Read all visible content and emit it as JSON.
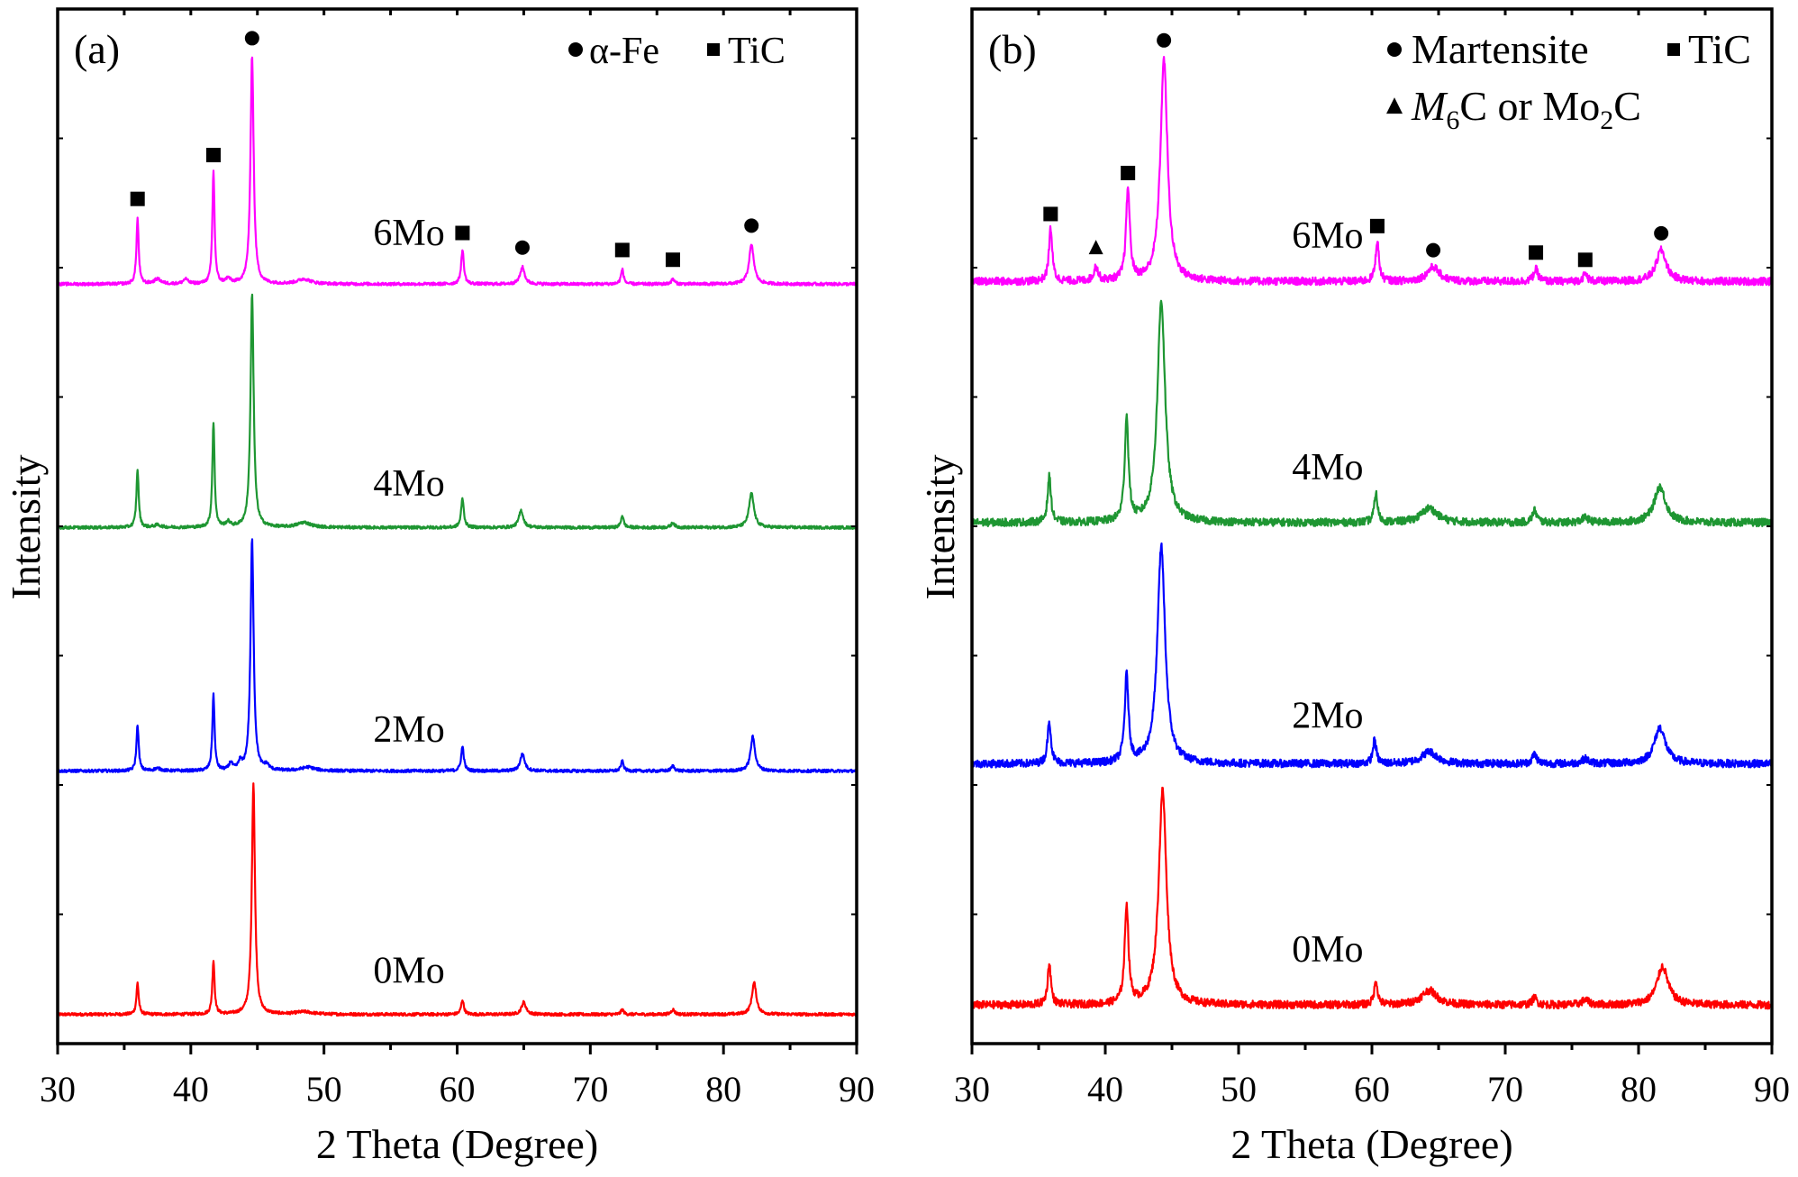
{
  "chart_data": [
    {
      "type": "line",
      "panel_label": "(a)",
      "xlabel": "2 Theta (Degree)",
      "ylabel": "Intensity",
      "xlim": [
        30,
        90
      ],
      "ylim": [
        -12,
        413
      ],
      "xticks": [
        "30",
        "40",
        "50",
        "60",
        "70",
        "80",
        "90"
      ],
      "noise_level": 0.6,
      "legend": {
        "position": "top-right",
        "items": [
          {
            "symbol": "circle",
            "label": "α-Fe"
          },
          {
            "symbol": "square",
            "label": "TiC"
          }
        ]
      },
      "series": [
        {
          "name": "0Mo",
          "color": "#ff0000",
          "offset": 0,
          "label_at": [
            53.7,
            13
          ],
          "peaks": [
            [
              36.0,
              13,
              0.1
            ],
            [
              41.7,
              22,
              0.1
            ],
            [
              44.7,
              95,
              0.14
            ],
            [
              48.5,
              1,
              0.8
            ],
            [
              60.4,
              6,
              0.12
            ],
            [
              65.0,
              5,
              0.2
            ],
            [
              72.4,
              2,
              0.12
            ],
            [
              76.2,
              2,
              0.15
            ],
            [
              82.3,
              13,
              0.2
            ]
          ]
        },
        {
          "name": "2Mo",
          "color": "#0000ff",
          "offset": 100,
          "label_at": [
            53.7,
            112
          ],
          "peaks": [
            [
              36.0,
              19,
              0.1
            ],
            [
              37.5,
              1,
              0.3
            ],
            [
              41.7,
              31,
              0.1
            ],
            [
              43.0,
              3,
              0.15
            ],
            [
              43.7,
              3,
              0.15
            ],
            [
              44.6,
              95,
              0.14
            ],
            [
              45.7,
              2,
              0.2
            ],
            [
              48.8,
              1.5,
              0.6
            ],
            [
              60.4,
              10,
              0.12
            ],
            [
              64.9,
              7,
              0.2
            ],
            [
              72.4,
              4,
              0.12
            ],
            [
              76.2,
              2,
              0.15
            ],
            [
              82.2,
              14,
              0.2
            ]
          ]
        },
        {
          "name": "4Mo",
          "color": "#1e9632",
          "offset": 200,
          "label_at": [
            53.7,
            213
          ],
          "peaks": [
            [
              36.0,
              24,
              0.1
            ],
            [
              37.5,
              1,
              0.3
            ],
            [
              41.7,
              43,
              0.1
            ],
            [
              42.8,
              2,
              0.2
            ],
            [
              44.6,
              96,
              0.14
            ],
            [
              48.5,
              2,
              0.6
            ],
            [
              60.4,
              12,
              0.12
            ],
            [
              64.8,
              7,
              0.2
            ],
            [
              72.4,
              5,
              0.12
            ],
            [
              76.2,
              2,
              0.15
            ],
            [
              82.1,
              14,
              0.22
            ]
          ]
        },
        {
          "name": "6Mo",
          "color": "#ff00ff",
          "offset": 300,
          "label_at": [
            53.7,
            316
          ],
          "peaks": [
            [
              36.0,
              27,
              0.1
            ],
            [
              37.5,
              2,
              0.3
            ],
            [
              39.6,
              2,
              0.2
            ],
            [
              41.7,
              46,
              0.1
            ],
            [
              42.8,
              2,
              0.2
            ],
            [
              44.6,
              94,
              0.14
            ],
            [
              48.5,
              2,
              0.6
            ],
            [
              60.4,
              14,
              0.12
            ],
            [
              64.9,
              7,
              0.2
            ],
            [
              72.4,
              6,
              0.12
            ],
            [
              76.2,
              2,
              0.15
            ],
            [
              82.1,
              16,
              0.22
            ]
          ]
        }
      ],
      "markers": [
        {
          "symbol": "square",
          "x": 36.0,
          "y": 335
        },
        {
          "symbol": "square",
          "x": 41.7,
          "y": 353
        },
        {
          "symbol": "circle",
          "x": 44.6,
          "y": 401
        },
        {
          "symbol": "square",
          "x": 60.4,
          "y": 321
        },
        {
          "symbol": "circle",
          "x": 64.9,
          "y": 315
        },
        {
          "symbol": "square",
          "x": 72.4,
          "y": 314
        },
        {
          "symbol": "square",
          "x": 76.2,
          "y": 310
        },
        {
          "symbol": "circle",
          "x": 82.1,
          "y": 324
        }
      ]
    },
    {
      "type": "line",
      "panel_label": "(b)",
      "xlabel": "2 Theta (Degree)",
      "ylabel": "Intensity",
      "xlim": [
        30,
        90
      ],
      "ylim": [
        -16,
        413
      ],
      "xticks": [
        "30",
        "40",
        "50",
        "60",
        "70",
        "80",
        "90"
      ],
      "noise_level": 1.6,
      "legend": {
        "position": "top-right",
        "items": [
          {
            "symbol": "circle",
            "label": "Martensite"
          },
          {
            "symbol": "square",
            "label": "TiC"
          },
          {
            "symbol": "triangle",
            "label": "M6C or Mo2C",
            "parts": {
              "italic": "M",
              "sub1": "6",
              "mid": "C or Mo",
              "sub2": "2",
              "end": "C"
            }
          }
        ]
      },
      "series": [
        {
          "name": "0Mo",
          "color": "#ff0000",
          "offset": 0,
          "label_at": [
            54.0,
            18
          ],
          "peaks": [
            [
              35.8,
              17,
              0.15
            ],
            [
              41.6,
              41,
              0.17
            ],
            [
              44.3,
              89,
              0.35
            ],
            [
              60.3,
              10,
              0.15
            ],
            [
              64.3,
              6,
              0.7
            ],
            [
              72.2,
              3,
              0.2
            ],
            [
              76.0,
              2,
              0.3
            ],
            [
              81.8,
              16,
              0.5
            ]
          ]
        },
        {
          "name": "2Mo",
          "color": "#0000ff",
          "offset": 100,
          "label_at": [
            54.0,
            115
          ],
          "peaks": [
            [
              35.8,
              18,
              0.15
            ],
            [
              41.6,
              36,
              0.17
            ],
            [
              44.2,
              90,
              0.35
            ],
            [
              60.2,
              10,
              0.15
            ],
            [
              64.3,
              5,
              0.7
            ],
            [
              72.2,
              4,
              0.2
            ],
            [
              76.0,
              2,
              0.3
            ],
            [
              81.6,
              15,
              0.5
            ]
          ]
        },
        {
          "name": "4Mo",
          "color": "#1e9632",
          "offset": 200,
          "label_at": [
            54.0,
            218
          ],
          "peaks": [
            [
              35.8,
              19,
              0.15
            ],
            [
              41.6,
              43,
              0.17
            ],
            [
              44.2,
              92,
              0.35
            ],
            [
              60.3,
              12,
              0.15
            ],
            [
              64.3,
              6,
              0.7
            ],
            [
              72.2,
              5,
              0.2
            ],
            [
              76.0,
              2,
              0.3
            ],
            [
              81.6,
              15,
              0.5
            ]
          ]
        },
        {
          "name": "6Mo",
          "color": "#ff00ff",
          "offset": 300,
          "label_at": [
            54.0,
            314
          ],
          "peaks": [
            [
              35.9,
              22,
              0.15
            ],
            [
              39.3,
              6,
              0.18
            ],
            [
              41.7,
              38,
              0.17
            ],
            [
              44.4,
              92,
              0.32
            ],
            [
              60.4,
              17,
              0.15
            ],
            [
              64.6,
              6,
              0.55
            ],
            [
              72.3,
              5,
              0.2
            ],
            [
              76.0,
              3,
              0.2
            ],
            [
              81.7,
              13,
              0.45
            ]
          ]
        }
      ],
      "markers": [
        {
          "symbol": "square",
          "x": 35.9,
          "y": 328
        },
        {
          "symbol": "triangle",
          "x": 39.3,
          "y": 314
        },
        {
          "symbol": "square",
          "x": 41.7,
          "y": 345
        },
        {
          "symbol": "circle",
          "x": 44.4,
          "y": 400
        },
        {
          "symbol": "square",
          "x": 60.4,
          "y": 323
        },
        {
          "symbol": "circle",
          "x": 64.6,
          "y": 313
        },
        {
          "symbol": "square",
          "x": 72.3,
          "y": 312
        },
        {
          "symbol": "square",
          "x": 76.0,
          "y": 309
        },
        {
          "symbol": "circle",
          "x": 81.7,
          "y": 320
        }
      ]
    }
  ]
}
